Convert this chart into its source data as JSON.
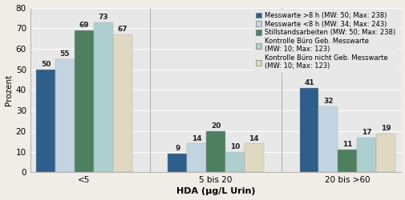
{
  "categories": [
    "<5",
    "5 bis 20",
    "20 bis >60"
  ],
  "series": [
    {
      "label": "Messwarte >8 h (MW: 50; Max: 238)",
      "values": [
        50,
        9,
        41
      ],
      "color": "#2e5f8a"
    },
    {
      "label": "Messwarte <8 h (MW: 34; Max: 243)",
      "values": [
        55,
        14,
        32
      ],
      "color": "#c2d4e0"
    },
    {
      "label": "Stillstandsarbeiten (MW: 50; Max: 238)",
      "values": [
        69,
        20,
        11
      ],
      "color": "#4e8060"
    },
    {
      "label": "Kontrolle Büro Geb. Messwarte\n(MW: 10; Max: 123)",
      "values": [
        73,
        10,
        17
      ],
      "color": "#aecfcf"
    },
    {
      "label": "Kontrolle Büro nicht Geb. Messwarte\n(MW: 10; Max: 123)",
      "values": [
        67,
        14,
        19
      ],
      "color": "#e0d8c0"
    }
  ],
  "ylabel": "Prozent",
  "xlabel": "HDA (µg/L Urin)",
  "ylim": [
    0,
    80
  ],
  "yticks": [
    0,
    10,
    20,
    30,
    40,
    50,
    60,
    70,
    80
  ],
  "bar_width": 0.16,
  "label_fontsize": 6.5,
  "axis_fontsize": 7.5,
  "legend_fontsize": 6.0,
  "background_color": "#e8e8e8",
  "outer_bg_color": "#f0ede6"
}
